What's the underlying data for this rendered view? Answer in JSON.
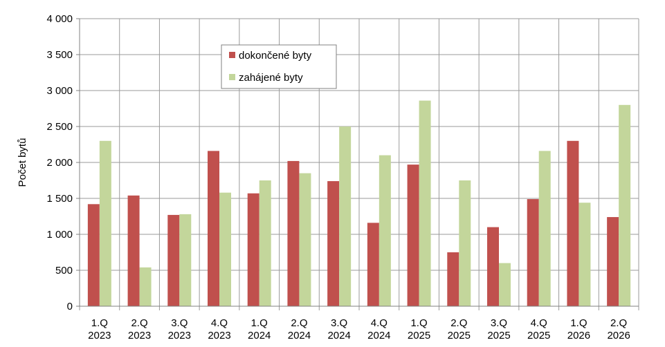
{
  "chart_data": {
    "type": "bar",
    "ylabel": "Počet bytů",
    "ylim": [
      0,
      4000
    ],
    "yticks": [
      0,
      500,
      1000,
      1500,
      2000,
      2500,
      3000,
      3500,
      4000
    ],
    "ytick_labels": [
      "0",
      "500",
      "1 000",
      "1 500",
      "2 000",
      "2 500",
      "3 000",
      "3 500",
      "4 000"
    ],
    "categories": [
      [
        "1.Q",
        "2023"
      ],
      [
        "2.Q",
        "2023"
      ],
      [
        "3.Q",
        "2023"
      ],
      [
        "4.Q",
        "2023"
      ],
      [
        "1.Q",
        "2024"
      ],
      [
        "2.Q",
        "2024"
      ],
      [
        "3.Q",
        "2024"
      ],
      [
        "4.Q",
        "2024"
      ],
      [
        "1.Q",
        "2025"
      ],
      [
        "2.Q",
        "2025"
      ],
      [
        "3.Q",
        "2025"
      ],
      [
        "4.Q",
        "2025"
      ],
      [
        "1.Q",
        "2026"
      ],
      [
        "2.Q",
        "2026"
      ]
    ],
    "series": [
      {
        "name": "dokončené byty",
        "color": "#c0504d",
        "values": [
          1420,
          1540,
          1270,
          2160,
          1570,
          2020,
          1740,
          1160,
          1970,
          750,
          1100,
          1490,
          2300,
          1240
        ]
      },
      {
        "name": "zahájené byty",
        "color": "#c3d69b",
        "values": [
          2300,
          540,
          1280,
          1580,
          1750,
          1850,
          2500,
          2100,
          2860,
          1750,
          600,
          2160,
          1440,
          2800
        ]
      }
    ],
    "grid": true,
    "legend_position": "top-center"
  }
}
